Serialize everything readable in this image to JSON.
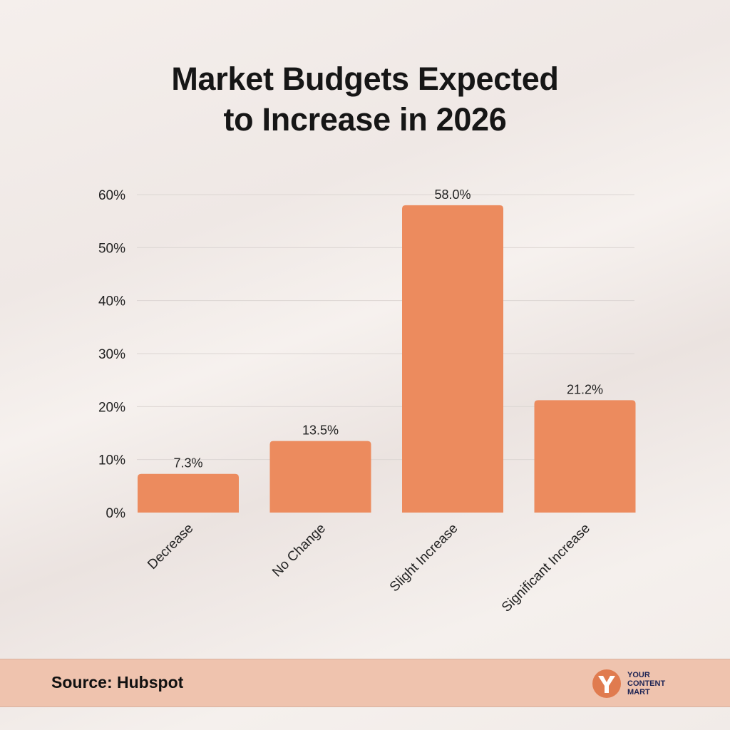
{
  "chart_data": {
    "type": "bar",
    "title": "Market Budgets Expected to Increase in 2026",
    "title_lines": [
      "Market Budgets Expected",
      "to Increase in 2026"
    ],
    "categories": [
      "Decrease",
      "No Change",
      "Slight Increase",
      "Significant Increase"
    ],
    "values": [
      7.3,
      13.5,
      58.0,
      21.2
    ],
    "data_labels": [
      "7.3%",
      "13.5%",
      "58.0%",
      "21.2%"
    ],
    "ylim": [
      0,
      60
    ],
    "yticks": [
      "0%",
      "10%",
      "20%",
      "30%",
      "40%",
      "50%",
      "60%"
    ],
    "xlabel": "",
    "ylabel": "",
    "grid": true,
    "bar_color": "#EC8B5E"
  },
  "footer": {
    "source": "Source: Hubspot",
    "logo_text": [
      "YOUR",
      "CONTENT",
      "MART"
    ],
    "logo_color": "#E07B4F",
    "logo_text_color": "#1D2454"
  }
}
